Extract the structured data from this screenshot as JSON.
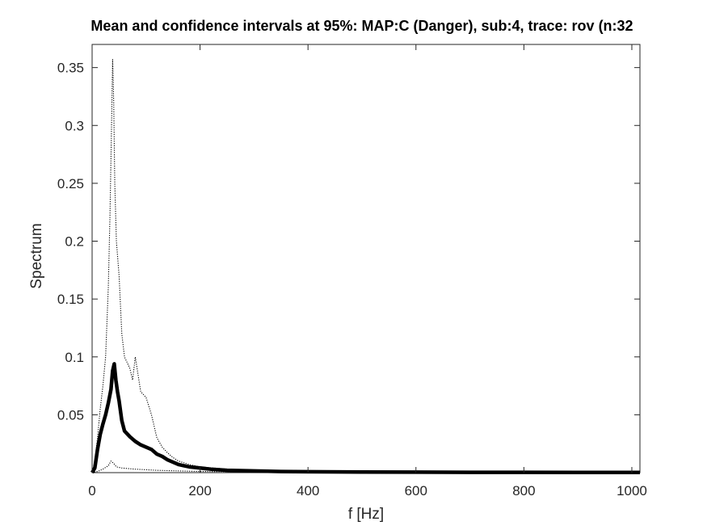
{
  "chart_data": {
    "type": "line",
    "title": "Mean and confidence intervals at 95%: MAP:C (Danger), sub:4, trace: rov (n:32",
    "xlabel": "f [Hz]",
    "ylabel": "Spectrum",
    "xlim": [
      0,
      1015
    ],
    "ylim": [
      0,
      0.37
    ],
    "grid": false,
    "xticks": [
      0,
      200,
      400,
      600,
      800,
      1000
    ],
    "xtick_labels": [
      "0",
      "200",
      "400",
      "600",
      "800",
      "1000"
    ],
    "yticks": [
      0.05,
      0.1,
      0.15,
      0.2,
      0.25,
      0.3,
      0.35
    ],
    "ytick_labels": [
      "0.05",
      "0.1",
      "0.15",
      "0.2",
      "0.25",
      "0.3",
      "0.35"
    ],
    "series": [
      {
        "role": "mean",
        "style": "solid-thick",
        "color": "#000000",
        "points": [
          [
            0,
            0
          ],
          [
            5,
            0.004
          ],
          [
            10,
            0.02
          ],
          [
            15,
            0.033
          ],
          [
            20,
            0.042
          ],
          [
            25,
            0.05
          ],
          [
            30,
            0.06
          ],
          [
            35,
            0.072
          ],
          [
            38,
            0.088
          ],
          [
            41,
            0.094
          ],
          [
            44,
            0.08
          ],
          [
            47,
            0.07
          ],
          [
            50,
            0.062
          ],
          [
            55,
            0.045
          ],
          [
            60,
            0.036
          ],
          [
            70,
            0.031
          ],
          [
            80,
            0.027
          ],
          [
            90,
            0.024
          ],
          [
            100,
            0.022
          ],
          [
            110,
            0.02
          ],
          [
            120,
            0.016
          ],
          [
            130,
            0.014
          ],
          [
            140,
            0.011
          ],
          [
            150,
            0.009
          ],
          [
            160,
            0.007
          ],
          [
            170,
            0.006
          ],
          [
            180,
            0.005
          ],
          [
            200,
            0.004
          ],
          [
            220,
            0.003
          ],
          [
            250,
            0.002
          ],
          [
            300,
            0.0015
          ],
          [
            350,
            0.001
          ],
          [
            400,
            0.0008
          ],
          [
            500,
            0.0005
          ],
          [
            600,
            0.0004
          ],
          [
            700,
            0.0003
          ],
          [
            800,
            0.0003
          ],
          [
            900,
            0.0002
          ],
          [
            1015,
            0.0002
          ]
        ]
      },
      {
        "role": "upper confidence bound",
        "style": "dotted",
        "color": "#000000",
        "points": [
          [
            0,
            0
          ],
          [
            5,
            0.01
          ],
          [
            10,
            0.03
          ],
          [
            15,
            0.055
          ],
          [
            20,
            0.075
          ],
          [
            25,
            0.1
          ],
          [
            30,
            0.16
          ],
          [
            33,
            0.22
          ],
          [
            36,
            0.3
          ],
          [
            38,
            0.357
          ],
          [
            40,
            0.32
          ],
          [
            42,
            0.25
          ],
          [
            45,
            0.2
          ],
          [
            50,
            0.17
          ],
          [
            55,
            0.12
          ],
          [
            60,
            0.1
          ],
          [
            70,
            0.09
          ],
          [
            75,
            0.08
          ],
          [
            80,
            0.1
          ],
          [
            85,
            0.085
          ],
          [
            90,
            0.07
          ],
          [
            100,
            0.065
          ],
          [
            110,
            0.05
          ],
          [
            120,
            0.03
          ],
          [
            130,
            0.022
          ],
          [
            140,
            0.017
          ],
          [
            150,
            0.013
          ],
          [
            160,
            0.01
          ],
          [
            180,
            0.007
          ],
          [
            200,
            0.005
          ],
          [
            250,
            0.003
          ],
          [
            300,
            0.002
          ],
          [
            400,
            0.001
          ],
          [
            500,
            0.0008
          ],
          [
            700,
            0.0005
          ],
          [
            1015,
            0.0004
          ]
        ]
      },
      {
        "role": "lower confidence bound",
        "style": "dotted",
        "color": "#000000",
        "points": [
          [
            0,
            0
          ],
          [
            10,
            0.001
          ],
          [
            20,
            0.003
          ],
          [
            30,
            0.006
          ],
          [
            35,
            0.01
          ],
          [
            40,
            0.008
          ],
          [
            45,
            0.005
          ],
          [
            55,
            0.004
          ],
          [
            80,
            0.003
          ],
          [
            120,
            0.002
          ],
          [
            200,
            0.001
          ],
          [
            400,
            0.0005
          ],
          [
            1015,
            0.0001
          ]
        ]
      }
    ]
  }
}
